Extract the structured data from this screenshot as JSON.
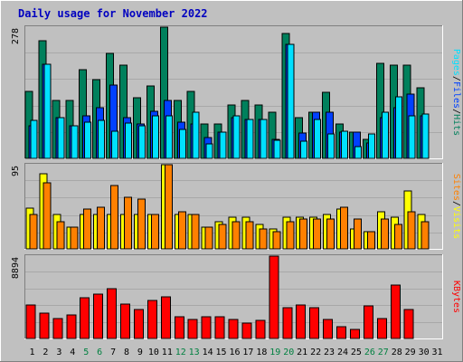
{
  "title": "Daily usage for November 2022",
  "colors": {
    "background": "#c0c0c0",
    "frame_light": "#ffffff",
    "frame_dark": "#808080",
    "title": "#0000c0",
    "hits": "#00805c",
    "files": "#0040ff",
    "pages": "#00e0ff",
    "visits": "#ffff00",
    "sites": "#ff8000",
    "kbytes": "#ff0000",
    "weekend_label": "#008040",
    "weekday_label": "#000000"
  },
  "chart_data": [
    {
      "type": "bar",
      "name": "hits-files-pages",
      "ymax_label": "278",
      "ylim": [
        0,
        278
      ],
      "legend": {
        "pages": "Pages",
        "files": "Files",
        "hits": "Hits",
        "sep": "/"
      },
      "categories": [
        "1",
        "2",
        "3",
        "4",
        "5",
        "6",
        "7",
        "8",
        "9",
        "10",
        "11",
        "12",
        "13",
        "14",
        "15",
        "16",
        "17",
        "18",
        "19",
        "20",
        "21",
        "22",
        "23",
        "24",
        "25",
        "26",
        "27",
        "28",
        "29",
        "30",
        "31"
      ],
      "series": [
        {
          "name": "Hits",
          "values": [
            142,
            250,
            122,
            122,
            188,
            166,
            222,
            197,
            128,
            154,
            278,
            122,
            142,
            72,
            72,
            114,
            122,
            114,
            97,
            265,
            86,
            97,
            139,
            72,
            55,
            41,
            201,
            197,
            197,
            150,
            0
          ]
        },
        {
          "name": "Files",
          "values": [
            69,
            200,
            86,
            69,
            91,
            108,
            155,
            86,
            72,
            100,
            122,
            77,
            72,
            44,
            55,
            86,
            83,
            83,
            41,
            241,
            53,
            97,
            97,
            55,
            55,
            33,
            86,
            108,
            136,
            91,
            0
          ]
        },
        {
          "name": "Pages",
          "values": [
            80,
            200,
            86,
            69,
            77,
            80,
            58,
            75,
            69,
            91,
            91,
            61,
            97,
            30,
            55,
            91,
            83,
            83,
            38,
            241,
            36,
            83,
            52,
            58,
            24,
            52,
            97,
            130,
            91,
            94,
            0
          ]
        }
      ]
    },
    {
      "type": "bar",
      "name": "visits-sites",
      "ymax_label": "95",
      "ylim": [
        0,
        95
      ],
      "legend": {
        "sites": "Sites",
        "visits": "Visits",
        "sep": "/"
      },
      "categories": [
        "1",
        "2",
        "3",
        "4",
        "5",
        "6",
        "7",
        "8",
        "9",
        "10",
        "11",
        "12",
        "13",
        "14",
        "15",
        "16",
        "17",
        "18",
        "19",
        "20",
        "21",
        "22",
        "23",
        "24",
        "25",
        "26",
        "27",
        "28",
        "29",
        "30",
        "31"
      ],
      "series": [
        {
          "name": "Visits",
          "values": [
            46,
            85,
            39,
            25,
            39,
            39,
            39,
            39,
            39,
            39,
            95,
            39,
            39,
            25,
            31,
            36,
            36,
            28,
            22,
            36,
            36,
            36,
            39,
            45,
            22,
            19,
            42,
            36,
            65,
            39,
            0
          ]
        },
        {
          "name": "Sites",
          "values": [
            39,
            75,
            31,
            25,
            45,
            47,
            72,
            58,
            56,
            39,
            95,
            42,
            39,
            25,
            28,
            31,
            31,
            22,
            19,
            31,
            34,
            34,
            34,
            47,
            34,
            19,
            34,
            28,
            42,
            31,
            0
          ]
        }
      ]
    },
    {
      "type": "bar",
      "name": "kbytes",
      "ymax_label": "8894",
      "ylim": [
        0,
        8894
      ],
      "legend": {
        "kbytes": "KBytes"
      },
      "categories": [
        "1",
        "2",
        "3",
        "4",
        "5",
        "6",
        "7",
        "8",
        "9",
        "10",
        "11",
        "12",
        "13",
        "14",
        "15",
        "16",
        "17",
        "18",
        "19",
        "20",
        "21",
        "22",
        "23",
        "24",
        "25",
        "26",
        "27",
        "28",
        "29",
        "30",
        "31"
      ],
      "series": [
        {
          "name": "KBytes",
          "values": [
            3660,
            2696,
            2119,
            2503,
            4431,
            4817,
            5395,
            3756,
            3083,
            4143,
            4527,
            2310,
            2021,
            2310,
            2310,
            2021,
            1637,
            1926,
            8894,
            3276,
            3660,
            3276,
            2021,
            1251,
            964,
            3564,
            2119,
            5781,
            3083,
            0,
            0
          ]
        }
      ]
    }
  ],
  "x_labels": [
    "1",
    "2",
    "3",
    "4",
    "5",
    "6",
    "7",
    "8",
    "9",
    "10",
    "11",
    "12",
    "13",
    "14",
    "15",
    "16",
    "17",
    "18",
    "19",
    "20",
    "21",
    "22",
    "23",
    "24",
    "25",
    "26",
    "27",
    "28",
    "29",
    "30",
    "31"
  ],
  "weekend_days": [
    "5",
    "6",
    "12",
    "13",
    "19",
    "20",
    "26",
    "27"
  ]
}
